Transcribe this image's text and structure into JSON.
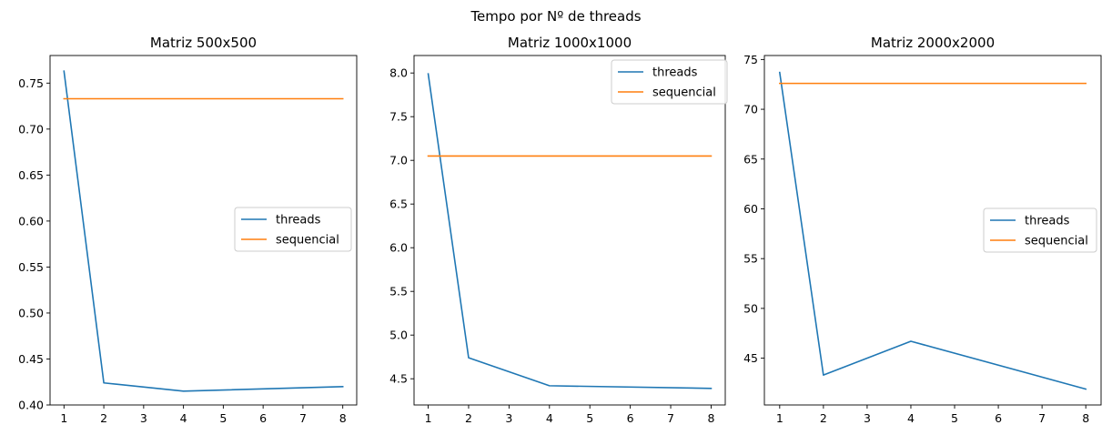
{
  "figure": {
    "suptitle": "Tempo por Nº de threads"
  },
  "colors": {
    "threads": "#1f77b4",
    "sequencial": "#ff7f0e",
    "axis": "#000000",
    "legend_border": "#cccccc"
  },
  "chart_data": [
    {
      "type": "line",
      "title": "Matriz 500x500",
      "xlabel": "",
      "ylabel": "",
      "xlim": [
        0.65,
        8.35
      ],
      "ylim": [
        0.4,
        0.78
      ],
      "xticks": [
        1,
        2,
        3,
        4,
        5,
        6,
        7,
        8
      ],
      "yticks": [
        0.4,
        0.45,
        0.5,
        0.55,
        0.6,
        0.65,
        0.7,
        0.75
      ],
      "ytick_labels": [
        "0.40",
        "0.45",
        "0.50",
        "0.55",
        "0.60",
        "0.65",
        "0.70",
        "0.75"
      ],
      "legend_position": "center-right",
      "series": [
        {
          "name": "threads",
          "x": [
            1,
            2,
            4,
            8
          ],
          "y": [
            0.763,
            0.424,
            0.415,
            0.42
          ]
        },
        {
          "name": "sequencial",
          "x": [
            1,
            8
          ],
          "y": [
            0.733,
            0.733
          ]
        }
      ]
    },
    {
      "type": "line",
      "title": "Matriz 1000x1000",
      "xlabel": "",
      "ylabel": "",
      "xlim": [
        0.65,
        8.35
      ],
      "ylim": [
        4.2,
        8.2
      ],
      "xticks": [
        1,
        2,
        3,
        4,
        5,
        6,
        7,
        8
      ],
      "yticks": [
        4.5,
        5.0,
        5.5,
        6.0,
        6.5,
        7.0,
        7.5,
        8.0
      ],
      "ytick_labels": [
        "4.5",
        "5.0",
        "5.5",
        "6.0",
        "6.5",
        "7.0",
        "7.5",
        "8.0"
      ],
      "legend_position": "upper-right",
      "series": [
        {
          "name": "threads",
          "x": [
            1,
            2,
            4,
            8
          ],
          "y": [
            7.99,
            4.74,
            4.42,
            4.39
          ]
        },
        {
          "name": "sequencial",
          "x": [
            1,
            8
          ],
          "y": [
            7.05,
            7.05
          ]
        }
      ]
    },
    {
      "type": "line",
      "title": "Matriz 2000x2000",
      "xlabel": "",
      "ylabel": "",
      "xlim": [
        0.65,
        8.35
      ],
      "ylim": [
        40.3,
        75.4
      ],
      "xticks": [
        1,
        2,
        3,
        4,
        5,
        6,
        7,
        8
      ],
      "yticks": [
        45,
        50,
        55,
        60,
        65,
        70,
        75
      ],
      "ytick_labels": [
        "45",
        "50",
        "55",
        "60",
        "65",
        "70",
        "75"
      ],
      "legend_position": "center-right",
      "series": [
        {
          "name": "threads",
          "x": [
            1,
            2,
            4,
            8
          ],
          "y": [
            73.7,
            43.3,
            46.7,
            41.9
          ]
        },
        {
          "name": "sequencial",
          "x": [
            1,
            8
          ],
          "y": [
            72.6,
            72.6
          ]
        }
      ]
    }
  ]
}
